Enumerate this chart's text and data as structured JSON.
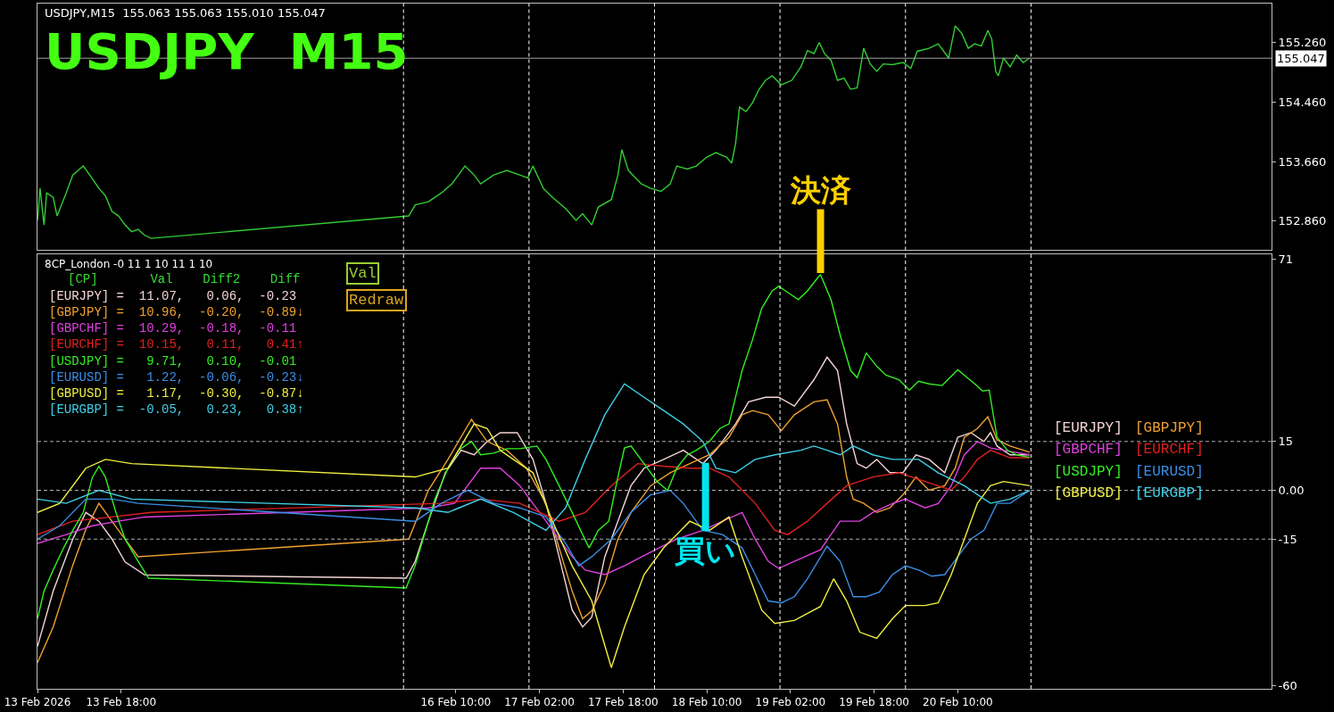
{
  "chart_data": [
    {
      "type": "line",
      "title": "USDJPY  M15",
      "subtitle": "USDJPY,M15  155.063 155.063 155.010 155.047",
      "tick_labels": "y",
      "xlim": [
        "2026-02-13T02:00",
        "2026-02-22T22:00"
      ],
      "ylim": [
        152.47,
        155.78
      ],
      "yticks": [
        {
          "value": 155.26,
          "label": "155.260"
        },
        {
          "value": 154.46,
          "label": "154.460"
        },
        {
          "value": 153.66,
          "label": "153.660"
        },
        {
          "value": 152.86,
          "label": "152.860"
        }
      ],
      "ref_lines": [
        {
          "axis": "y",
          "value": 155.047,
          "label": "155.047",
          "color": "#a0a0a0",
          "line_style": "solid"
        },
        {
          "axis": "x",
          "value": "2026-02-16",
          "color": "#ffffff",
          "line_style": "dashed"
        },
        {
          "axis": "x",
          "value": "2026-02-17",
          "color": "#ffffff",
          "line_style": "dashed"
        },
        {
          "axis": "x",
          "value": "2026-02-18",
          "color": "#ffffff",
          "line_style": "dashed"
        },
        {
          "axis": "x",
          "value": "2026-02-19",
          "color": "#ffffff",
          "line_style": "dashed"
        },
        {
          "axis": "x",
          "value": "2026-02-20",
          "color": "#ffffff",
          "line_style": "dashed"
        },
        {
          "axis": "x",
          "value": "2026-02-21",
          "color": "#ffffff",
          "line_style": "dashed"
        }
      ],
      "series": [
        {
          "color": "#33cc33",
          "x": [
            "2026-02-13T02:00",
            "2026-02-13T02:30",
            "2026-02-13T03:15",
            "2026-02-13T03:45",
            "2026-02-13T05:00",
            "2026-02-13T05:45",
            "2026-02-13T07:30",
            "2026-02-13T08:45",
            "2026-02-13T10:45",
            "2026-02-13T12:00",
            "2026-02-13T13:45",
            "2026-02-13T15:00",
            "2026-02-13T16:15",
            "2026-02-13T17:30",
            "2026-02-13T18:45",
            "2026-02-13T20:00",
            "2026-02-13T21:15",
            "2026-02-13T22:30",
            "2026-02-13T23:45",
            "2026-02-16T01:00",
            "2026-02-16T02:15",
            "2026-02-16T04:45",
            "2026-02-16T07:15",
            "2026-02-16T09:15",
            "2026-02-16T10:30",
            "2026-02-16T11:45",
            "2026-02-16T13:30",
            "2026-02-16T14:45",
            "2026-02-16T17:15",
            "2026-02-16T19:45",
            "2026-02-16T22:15",
            "2026-02-16T23:45",
            "2026-02-17T00:45",
            "2026-02-17T02:45",
            "2026-02-17T04:30",
            "2026-02-17T07:00",
            "2026-02-17T09:00",
            "2026-02-17T10:15",
            "2026-02-17T12:00",
            "2026-02-17T13:15",
            "2026-02-17T15:45",
            "2026-02-17T17:00",
            "2026-02-17T17:45",
            "2026-02-17T19:00",
            "2026-02-17T21:30",
            "2026-02-17T23:15",
            "2026-02-18T01:15",
            "2026-02-18T03:00",
            "2026-02-18T04:15",
            "2026-02-18T06:15",
            "2026-02-18T08:00",
            "2026-02-18T10:00",
            "2026-02-18T11:45",
            "2026-02-18T13:45",
            "2026-02-18T14:45",
            "2026-02-18T15:30",
            "2026-02-18T16:15",
            "2026-02-18T17:30",
            "2026-02-18T18:45",
            "2026-02-18T20:00",
            "2026-02-18T21:15",
            "2026-02-18T22:30",
            "2026-02-19T00:15",
            "2026-02-19T02:15",
            "2026-02-19T04:00",
            "2026-02-19T05:15",
            "2026-02-19T06:30",
            "2026-02-19T07:30",
            "2026-02-19T08:30",
            "2026-02-19T09:45",
            "2026-02-19T11:00",
            "2026-02-19T12:15",
            "2026-02-19T13:30",
            "2026-02-19T14:45",
            "2026-02-19T16:00",
            "2026-02-19T17:15",
            "2026-02-19T18:30",
            "2026-02-19T19:45",
            "2026-02-19T21:30",
            "2026-02-19T23:30",
            "2026-02-20T01:00",
            "2026-02-20T02:15",
            "2026-02-20T04:30",
            "2026-02-20T06:15",
            "2026-02-20T08:15",
            "2026-02-20T09:30",
            "2026-02-20T10:45",
            "2026-02-20T12:00",
            "2026-02-20T13:15",
            "2026-02-20T14:30",
            "2026-02-20T15:45",
            "2026-02-20T16:30",
            "2026-02-20T17:15",
            "2026-02-20T17:45",
            "2026-02-20T18:45",
            "2026-02-20T20:00",
            "2026-02-20T21:15",
            "2026-02-20T22:30",
            "2026-02-20T23:45"
          ],
          "values": [
            152.87,
            153.3,
            152.81,
            153.24,
            153.18,
            152.93,
            153.24,
            153.48,
            153.6,
            153.48,
            153.3,
            153.2,
            152.99,
            152.93,
            152.81,
            152.72,
            152.75,
            152.67,
            152.63,
            152.93,
            153.08,
            153.12,
            153.24,
            153.36,
            153.48,
            153.6,
            153.48,
            153.36,
            153.48,
            153.54,
            153.48,
            153.44,
            153.6,
            153.3,
            153.18,
            153.03,
            152.87,
            152.96,
            152.81,
            153.05,
            153.15,
            153.48,
            153.82,
            153.54,
            153.36,
            153.3,
            153.26,
            153.36,
            153.6,
            153.56,
            153.6,
            153.72,
            153.78,
            153.72,
            153.64,
            153.9,
            154.39,
            154.33,
            154.45,
            154.63,
            154.75,
            154.81,
            154.69,
            154.75,
            154.93,
            155.15,
            155.11,
            155.26,
            155.11,
            155.02,
            154.75,
            154.78,
            154.63,
            154.65,
            155.18,
            154.97,
            154.87,
            154.97,
            154.96,
            154.99,
            154.91,
            155.14,
            155.18,
            155.24,
            155.05,
            155.48,
            155.38,
            155.18,
            155.24,
            155.21,
            155.42,
            155.3,
            154.87,
            154.81,
            155.05,
            154.93,
            155.09,
            154.99,
            155.05
          ]
        }
      ]
    },
    {
      "type": "line",
      "title": "8CP_London -0 11 1 10 11 1 10",
      "xlim": [
        "2026-02-13T02:00",
        "2026-02-22T22:00"
      ],
      "xticks": [
        {
          "value": "2026-02-13T02:00",
          "label": "13 Feb 2026"
        },
        {
          "value": "2026-02-13T18:00",
          "label": "13 Feb 18:00"
        },
        {
          "value": "2026-02-16T10:00",
          "label": "16 Feb 10:00"
        },
        {
          "value": "2026-02-17T02:00",
          "label": "17 Feb 02:00"
        },
        {
          "value": "2026-02-17T18:00",
          "label": "17 Feb 18:00"
        },
        {
          "value": "2026-02-18T10:00",
          "label": "18 Feb 10:00"
        },
        {
          "value": "2026-02-19T02:00",
          "label": "19 Feb 02:00"
        },
        {
          "value": "2026-02-19T18:00",
          "label": "19 Feb 18:00"
        },
        {
          "value": "2026-02-20T10:00",
          "label": "20 Feb 10:00"
        }
      ],
      "ylim": [
        -61,
        72.5
      ],
      "yticks": [
        71,
        15,
        {
          "value": 0,
          "label": "0.00"
        },
        -15,
        -60
      ],
      "ref_lines": [
        {
          "axis": "y",
          "value": 15,
          "color": "#b0b0b0",
          "line_style": "dashed"
        },
        {
          "axis": "y",
          "value": 0,
          "color": "#b0b0b0",
          "line_style": "dashed"
        },
        {
          "axis": "y",
          "value": -15,
          "color": "#b0b0b0",
          "line_style": "dashed"
        },
        {
          "axis": "x",
          "value": "2026-02-16",
          "color": "#ffffff",
          "line_style": "dashed"
        },
        {
          "axis": "x",
          "value": "2026-02-17",
          "color": "#ffffff",
          "line_style": "dashed"
        },
        {
          "axis": "x",
          "value": "2026-02-18",
          "color": "#ffffff",
          "line_style": "dashed"
        },
        {
          "axis": "x",
          "value": "2026-02-19",
          "color": "#ffffff",
          "line_style": "dashed"
        },
        {
          "axis": "x",
          "value": "2026-02-20",
          "color": "#ffffff",
          "line_style": "dashed"
        },
        {
          "axis": "x",
          "value": "2026-02-21",
          "color": "#ffffff",
          "line_style": "dashed"
        }
      ],
      "annotations": [
        "[CP]       Val    Diff2    Diff",
        "[EURJPY] =  11.07,   0.06,  -0.23",
        "[GBPJPY] =  10.96,  -0.20,  -0.89↓",
        "[GBPCHF] =  10.29,  -0.18,  -0.11",
        "[EURCHF] =  10.15,   0.11,   0.41↑",
        "[USDJPY] =   9.71,   0.10,  -0.01",
        "[EURUSD] =   1.22,  -0.06,  -0.23↓",
        "[GBPUSD] =   1.17,  -0.30,  -0.87↓",
        "[EURGBP] =  -0.05,   0.23,   0.38↑",
        "Val",
        "Redraw",
        {
          "text": "買い",
          "x": "2026-02-18T09:45",
          "y": 9
        },
        {
          "text": "決済",
          "x": "2026-02-19T07:45",
          "y": 66.2
        }
      ],
      "series": [
        {
          "name": "[EURJPY]",
          "color": "#f5d5d5",
          "x": [
            "2026-02-13T02:00",
            "2026-02-13T05:00",
            "2026-02-13T08:45",
            "2026-02-13T11:15",
            "2026-02-13T13:45",
            "2026-02-13T16:15",
            "2026-02-13T18:45",
            "2026-02-13T22:30",
            "2026-02-16T00:30",
            "2026-02-16T02:15",
            "2026-02-16T04:45",
            "2026-02-16T08:00",
            "2026-02-16T11:00",
            "2026-02-16T13:30",
            "2026-02-16T16:00",
            "2026-02-16T18:30",
            "2026-02-16T21:45",
            "2026-02-17T00:45",
            "2026-02-17T03:15",
            "2026-02-17T05:45",
            "2026-02-17T08:15",
            "2026-02-17T10:15",
            "2026-02-17T12:00",
            "2026-02-17T14:30",
            "2026-02-17T17:00",
            "2026-02-17T19:30",
            "2026-02-17T22:00",
            "2026-02-18T01:45",
            "2026-02-18T05:30",
            "2026-02-18T09:15",
            "2026-02-18T11:45",
            "2026-02-18T15:30",
            "2026-02-18T18:00",
            "2026-02-18T21:15",
            "2026-02-18T23:45",
            "2026-02-19T02:45",
            "2026-02-19T06:30",
            "2026-02-19T09:00",
            "2026-02-19T11:00",
            "2026-02-19T12:45",
            "2026-02-19T14:45",
            "2026-02-19T16:30",
            "2026-02-19T18:30",
            "2026-02-19T21:00",
            "2026-02-19T23:30",
            "2026-02-20T02:00",
            "2026-02-20T04:30",
            "2026-02-20T07:30",
            "2026-02-20T10:00",
            "2026-02-20T12:30",
            "2026-02-20T15:00",
            "2026-02-20T16:15",
            "2026-02-20T17:30",
            "2026-02-20T20:00",
            "2026-02-20T23:45"
          ],
          "values": [
            -48,
            -31,
            -15,
            -6.8,
            -9.5,
            -15,
            -22,
            -26,
            -27,
            -21.8,
            -9.5,
            5.4,
            12.3,
            10.9,
            15,
            17.7,
            17.7,
            9.5,
            -4,
            -20.4,
            -36.8,
            -42,
            -39,
            -20.4,
            -9.5,
            1.4,
            6.8,
            9.5,
            12.3,
            8.2,
            12.3,
            20.4,
            27.2,
            28.6,
            28.6,
            25.9,
            34,
            40.9,
            36.8,
            20.4,
            8.2,
            6.8,
            9.5,
            5.4,
            5.4,
            10.9,
            9.5,
            5.4,
            16.3,
            17.7,
            15,
            17.7,
            13.6,
            10.9,
            10.9
          ]
        },
        {
          "name": "[GBPJPY]",
          "color": "#f0a030",
          "x": [
            "2026-02-13T02:00",
            "2026-02-13T05:00",
            "2026-02-13T08:45",
            "2026-02-13T11:15",
            "2026-02-13T13:45",
            "2026-02-13T17:30",
            "2026-02-13T21:15",
            "2026-02-16T01:00",
            "2026-02-16T04:45",
            "2026-02-16T08:30",
            "2026-02-16T13:00",
            "2026-02-16T16:00",
            "2026-02-16T19:45",
            "2026-02-16T23:30",
            "2026-02-17T03:15",
            "2026-02-17T05:45",
            "2026-02-17T08:15",
            "2026-02-17T10:15",
            "2026-02-17T12:00",
            "2026-02-17T14:30",
            "2026-02-17T17:00",
            "2026-02-17T19:30",
            "2026-02-17T23:15",
            "2026-02-18T03:00",
            "2026-02-18T06:45",
            "2026-02-18T10:30",
            "2026-02-18T14:15",
            "2026-02-18T16:45",
            "2026-02-18T18:45",
            "2026-02-18T21:45",
            "2026-02-19T00:15",
            "2026-02-19T02:45",
            "2026-02-19T06:30",
            "2026-02-19T09:00",
            "2026-02-19T11:00",
            "2026-02-19T12:45",
            "2026-02-19T14:00",
            "2026-02-19T16:00",
            "2026-02-19T18:30",
            "2026-02-19T21:00",
            "2026-02-19T23:30",
            "2026-02-20T02:00",
            "2026-02-20T04:30",
            "2026-02-20T07:30",
            "2026-02-20T09:30",
            "2026-02-20T11:15",
            "2026-02-20T13:45",
            "2026-02-20T15:45",
            "2026-02-20T17:30",
            "2026-02-20T20:00",
            "2026-02-20T23:45"
          ],
          "values": [
            -53,
            -42,
            -23,
            -12,
            -4,
            -12.3,
            -20.4,
            -15,
            0,
            9.5,
            21.8,
            15,
            12.3,
            6.8,
            -4,
            -17.7,
            -31,
            -39.5,
            -37,
            -28.6,
            -15,
            -6.8,
            1.4,
            5.4,
            8.2,
            10.9,
            16.3,
            23.2,
            24.5,
            23.2,
            18.3,
            23.2,
            27.2,
            27.8,
            20.4,
            4.1,
            -2.7,
            -4,
            -6.8,
            -5.4,
            -1.4,
            4.1,
            0,
            1.4,
            6.8,
            16.3,
            19,
            22.6,
            15.5,
            13.6,
            11.7
          ]
        },
        {
          "name": "[GBPCHF]",
          "color": "#e040e0",
          "x": [
            "2026-02-13T02:00",
            "2026-02-13T07:30",
            "2026-02-13T12:30",
            "2026-02-13T17:30",
            "2026-02-13T22:30",
            "2026-02-16T04:45",
            "2026-02-16T09:45",
            "2026-02-16T14:45",
            "2026-02-16T18:30",
            "2026-02-16T22:15",
            "2026-02-17T03:15",
            "2026-02-17T08:15",
            "2026-02-17T10:45",
            "2026-02-17T14:30",
            "2026-02-17T18:15",
            "2026-02-17T23:15",
            "2026-02-18T04:15",
            "2026-02-18T09:15",
            "2026-02-18T13:00",
            "2026-02-18T16:45",
            "2026-02-18T19:15",
            "2026-02-18T21:45",
            "2026-02-18T23:45",
            "2026-02-19T02:45",
            "2026-02-19T07:45",
            "2026-02-19T11:30",
            "2026-02-19T15:15",
            "2026-02-19T17:45",
            "2026-02-19T21:30",
            "2026-02-20T00:00",
            "2026-02-20T03:45",
            "2026-02-20T06:15",
            "2026-02-20T08:45",
            "2026-02-20T11:15",
            "2026-02-20T13:45",
            "2026-02-20T16:15",
            "2026-02-20T18:45",
            "2026-02-20T23:45"
          ],
          "values": [
            -16.3,
            -13.6,
            -10.9,
            -9.5,
            -8.2,
            -5.4,
            -4,
            6.8,
            6.8,
            1.4,
            -9.5,
            -20.4,
            -24.5,
            -25.9,
            -23.2,
            -19,
            -15,
            -12.3,
            -9.5,
            -6.8,
            -15,
            -21.8,
            -24,
            -21.8,
            -18.3,
            -9.5,
            -9.5,
            -6.8,
            -4.1,
            -2.7,
            -5.4,
            -4.1,
            1.4,
            10.9,
            15,
            13,
            12.3,
            10.9
          ]
        },
        {
          "name": "[EURCHF]",
          "color": "#e02020",
          "x": [
            "2026-02-13T02:00",
            "2026-02-13T08:45",
            "2026-02-13T16:15",
            "2026-02-13T23:45",
            "2026-02-16T07:15",
            "2026-02-16T14:45",
            "2026-02-16T22:15",
            "2026-02-17T05:45",
            "2026-02-17T10:45",
            "2026-02-17T15:45",
            "2026-02-17T20:45",
            "2026-02-18T01:45",
            "2026-02-18T06:45",
            "2026-02-18T10:30",
            "2026-02-18T14:15",
            "2026-02-18T19:15",
            "2026-02-18T23:00",
            "2026-02-19T01:30",
            "2026-02-19T05:15",
            "2026-02-19T09:00",
            "2026-02-19T12:45",
            "2026-02-19T17:45",
            "2026-02-19T22:45",
            "2026-02-20T03:45",
            "2026-02-20T08:45",
            "2026-02-20T11:15",
            "2026-02-20T13:45",
            "2026-02-20T16:15",
            "2026-02-20T20:00",
            "2026-02-20T23:45"
          ],
          "values": [
            -13.6,
            -9.5,
            -8.2,
            -6.8,
            -4,
            -2.7,
            -4,
            -9.5,
            -6.8,
            1.4,
            8.2,
            7.4,
            6.8,
            6.8,
            4.1,
            -4,
            -12.3,
            -13.6,
            -9.5,
            -4,
            1.4,
            4.1,
            5.4,
            2.7,
            0,
            4.1,
            9.5,
            12.3,
            10,
            10
          ]
        },
        {
          "name": "[USDJPY]",
          "color": "#33ee22",
          "x": [
            "2026-02-13T02:00",
            "2026-02-13T03:15",
            "2026-02-13T05:00",
            "2026-02-13T07:00",
            "2026-02-13T08:45",
            "2026-02-13T10:45",
            "2026-02-13T12:30",
            "2026-02-13T13:45",
            "2026-02-13T15:00",
            "2026-02-13T17:00",
            "2026-02-13T18:45",
            "2026-02-13T21:15",
            "2026-02-13T23:15",
            "2026-02-16T00:30",
            "2026-02-16T02:15",
            "2026-02-16T04:15",
            "2026-02-16T06:00",
            "2026-02-16T08:30",
            "2026-02-16T10:30",
            "2026-02-16T13:00",
            "2026-02-16T14:45",
            "2026-02-16T17:15",
            "2026-02-16T19:45",
            "2026-02-16T22:15",
            "2026-02-17T01:30",
            "2026-02-17T03:15",
            "2026-02-17T05:45",
            "2026-02-17T08:15",
            "2026-02-17T10:15",
            "2026-02-17T11:30",
            "2026-02-17T13:15",
            "2026-02-17T15:15",
            "2026-02-17T17:00",
            "2026-02-17T18:15",
            "2026-02-17T19:30",
            "2026-02-17T22:00",
            "2026-02-18T00:30",
            "2026-02-18T02:30",
            "2026-02-18T04:15",
            "2026-02-18T06:15",
            "2026-02-18T08:00",
            "2026-02-18T10:30",
            "2026-02-18T12:30",
            "2026-02-18T14:15",
            "2026-02-18T15:30",
            "2026-02-18T16:45",
            "2026-02-18T18:45",
            "2026-02-18T20:30",
            "2026-02-18T22:30",
            "2026-02-18T23:45",
            "2026-02-19T01:30",
            "2026-02-19T03:30",
            "2026-02-19T05:15",
            "2026-02-19T07:15",
            "2026-02-19T07:45",
            "2026-02-19T09:45",
            "2026-02-19T11:30",
            "2026-02-19T13:30",
            "2026-02-19T14:45",
            "2026-02-19T16:30",
            "2026-02-19T18:30",
            "2026-02-19T20:15",
            "2026-02-19T22:45",
            "2026-02-20T00:45",
            "2026-02-20T02:30",
            "2026-02-20T04:30",
            "2026-02-20T07:00",
            "2026-02-20T10:00",
            "2026-02-20T13:15",
            "2026-02-20T14:45",
            "2026-02-20T16:00",
            "2026-02-20T17:30",
            "2026-02-20T19:30",
            "2026-02-20T21:15",
            "2026-02-20T23:45"
          ],
          "values": [
            -39.5,
            -31,
            -24.5,
            -17.7,
            -12.3,
            -6.8,
            4,
            7.4,
            4,
            -6.8,
            -15,
            -21.8,
            -27,
            -30,
            -23,
            -12.3,
            -2.7,
            6.8,
            12.3,
            15,
            10.9,
            11.4,
            12.8,
            12.8,
            13.6,
            9.5,
            1.4,
            -6.8,
            -13.6,
            -17.7,
            -12.3,
            -9.5,
            4.1,
            13,
            13.6,
            8.2,
            2.7,
            0,
            6.8,
            10.9,
            12.3,
            15,
            19,
            20.4,
            28.6,
            36.8,
            46.3,
            55.9,
            61.3,
            62.7,
            60.8,
            58.6,
            61.3,
            65.4,
            66.2,
            58.6,
            47.7,
            36.8,
            34.6,
            42.2,
            38.1,
            35.4,
            34,
            30.8,
            33.5,
            32.7,
            32.2,
            37,
            32.7,
            30.5,
            30.8,
            16.3,
            12.3,
            10.9,
            10.1
          ]
        },
        {
          "name": "[EURUSD]",
          "color": "#3a8ee6",
          "x": [
            "2026-02-13T02:00",
            "2026-02-13T06:15",
            "2026-02-13T11:15",
            "2026-02-13T16:15",
            "2026-02-13T21:15",
            "2026-02-16T02:15",
            "2026-02-16T07:15",
            "2026-02-16T12:15",
            "2026-02-16T17:15",
            "2026-02-16T22:15",
            "2026-02-17T03:15",
            "2026-02-17T07:00",
            "2026-02-17T09:30",
            "2026-02-17T12:00",
            "2026-02-17T15:45",
            "2026-02-17T19:30",
            "2026-02-17T23:15",
            "2026-02-18T03:00",
            "2026-02-18T05:30",
            "2026-02-18T09:15",
            "2026-02-18T13:00",
            "2026-02-18T16:45",
            "2026-02-18T19:15",
            "2026-02-18T21:45",
            "2026-02-19T00:15",
            "2026-02-19T02:45",
            "2026-02-19T05:15",
            "2026-02-19T09:00",
            "2026-02-19T11:30",
            "2026-02-19T14:00",
            "2026-02-19T16:30",
            "2026-02-19T19:00",
            "2026-02-19T21:30",
            "2026-02-20T00:00",
            "2026-02-20T02:30",
            "2026-02-20T05:00",
            "2026-02-20T07:30",
            "2026-02-20T10:00",
            "2026-02-20T12:30",
            "2026-02-20T15:00",
            "2026-02-20T17:30",
            "2026-02-20T20:00",
            "2026-02-20T23:45"
          ],
          "values": [
            -15,
            -10.9,
            -2.7,
            -2.7,
            -4,
            -9.5,
            -4,
            0,
            -4,
            -5.4,
            -8.2,
            -16.3,
            -23.2,
            -20.4,
            -15,
            -6.8,
            -1.4,
            0,
            -4,
            -12.3,
            -13.6,
            -17.7,
            -25.9,
            -34,
            -34.6,
            -32.7,
            -27.2,
            -17.2,
            -21.8,
            -32.7,
            -32.7,
            -31.3,
            -25.9,
            -23.2,
            -24.5,
            -26.4,
            -25.9,
            -20.4,
            -15,
            -12.3,
            -4,
            -4,
            0
          ]
        },
        {
          "name": "[GBPUSD]",
          "color": "#f0f040",
          "x": [
            "2026-02-13T02:00",
            "2026-02-13T06:15",
            "2026-02-13T11:15",
            "2026-02-13T15:00",
            "2026-02-13T20:00",
            "2026-02-16T02:15",
            "2026-02-16T08:30",
            "2026-02-16T13:30",
            "2026-02-16T16:00",
            "2026-02-16T18:30",
            "2026-02-16T21:00",
            "2026-02-17T00:45",
            "2026-02-17T04:30",
            "2026-02-17T08:15",
            "2026-02-17T12:00",
            "2026-02-17T14:30",
            "2026-02-17T15:45",
            "2026-02-17T18:15",
            "2026-02-17T22:00",
            "2026-02-18T01:45",
            "2026-02-18T06:45",
            "2026-02-18T10:30",
            "2026-02-18T14:15",
            "2026-02-18T16:45",
            "2026-02-18T20:30",
            "2026-02-18T23:00",
            "2026-02-19T02:45",
            "2026-02-19T07:45",
            "2026-02-19T10:15",
            "2026-02-19T12:45",
            "2026-02-19T15:15",
            "2026-02-19T18:30",
            "2026-02-19T21:30",
            "2026-02-20T00:00",
            "2026-02-20T03:45",
            "2026-02-20T06:15",
            "2026-02-20T08:45",
            "2026-02-20T11:15",
            "2026-02-20T13:45",
            "2026-02-20T16:15",
            "2026-02-20T18:45",
            "2026-02-20T23:45"
          ],
          "values": [
            -6.8,
            -4,
            6.8,
            9.5,
            8.2,
            4.1,
            6.8,
            20.4,
            19,
            12.3,
            9.5,
            5.4,
            -9.5,
            -23.2,
            -34,
            -47.7,
            -54.5,
            -42,
            -25.9,
            -17.7,
            -9.5,
            -12.3,
            -8.2,
            -20.4,
            -36.8,
            -40.9,
            -40,
            -35.7,
            -27.2,
            -34,
            -43.6,
            -45.5,
            -39.5,
            -35.4,
            -35.4,
            -34.6,
            -25.9,
            -15,
            -4,
            1.4,
            2.7,
            1.4
          ]
        },
        {
          "name": "[EURGBP]",
          "color": "#40d0e8",
          "x": [
            "2026-02-13T02:00",
            "2026-02-13T07:30",
            "2026-02-13T13:45",
            "2026-02-13T20:00",
            "2026-02-16T02:15",
            "2026-02-16T08:30",
            "2026-02-16T14:45",
            "2026-02-16T21:00",
            "2026-02-17T03:15",
            "2026-02-17T07:00",
            "2026-02-17T10:45",
            "2026-02-17T14:30",
            "2026-02-17T18:15",
            "2026-02-17T22:00",
            "2026-02-18T01:45",
            "2026-02-18T05:30",
            "2026-02-18T09:15",
            "2026-02-18T11:45",
            "2026-02-18T15:30",
            "2026-02-18T19:15",
            "2026-02-18T23:00",
            "2026-02-19T04:00",
            "2026-02-19T06:30",
            "2026-02-19T09:00",
            "2026-02-19T11:30",
            "2026-02-19T14:00",
            "2026-02-19T17:45",
            "2026-02-19T21:30",
            "2026-02-20T02:30",
            "2026-02-20T06:15",
            "2026-02-20T11:15",
            "2026-02-20T16:15",
            "2026-02-20T20:00",
            "2026-02-20T23:45"
          ],
          "values": [
            -2.7,
            -4,
            0,
            -2.7,
            -5.4,
            -6.8,
            -2.7,
            -6.8,
            -12.3,
            -5.4,
            9.5,
            23.2,
            32.7,
            28.6,
            24.5,
            20.4,
            15,
            6.8,
            5.4,
            9.5,
            10.9,
            12.3,
            13.6,
            12.3,
            10.9,
            13.6,
            10.9,
            9.5,
            9.5,
            5.4,
            1.4,
            -4,
            -2.7,
            0
          ]
        }
      ]
    }
  ]
}
